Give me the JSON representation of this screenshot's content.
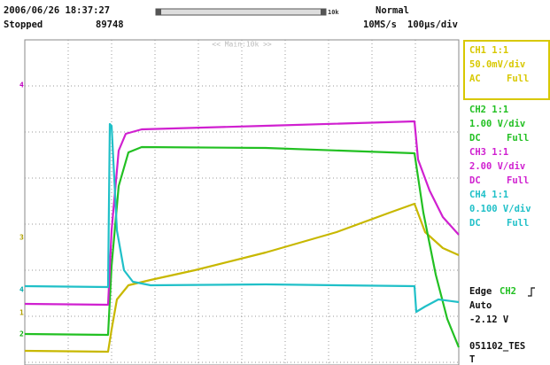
{
  "header": {
    "datetime": "2006/06/26 18:37:27",
    "status": "Stopped",
    "count": "89748",
    "zoom": "10k",
    "mode": "Normal",
    "sample_rate": "10MS/s",
    "timebase": "100μs/div"
  },
  "screen": {
    "zoom_label": "<< Main:10k >>",
    "markers": [
      "4",
      "3",
      "4",
      "1",
      "2"
    ]
  },
  "channels": [
    {
      "name": "CH1 1:1",
      "scale": "50.0mV/div",
      "coupling": "AC",
      "bandwidth": "Full"
    },
    {
      "name": "CH2 1:1",
      "scale": "1.00 V/div",
      "coupling": "DC",
      "bandwidth": "Full"
    },
    {
      "name": "CH3 1:1",
      "scale": "2.00 V/div",
      "coupling": "DC",
      "bandwidth": "Full"
    },
    {
      "name": "CH4 1:1",
      "scale": "0.100 V/div",
      "coupling": "DC",
      "bandwidth": "Full"
    }
  ],
  "trigger": {
    "type": "Edge",
    "source": "CH2",
    "mode": "Auto",
    "level": "-2.12 V"
  },
  "file": [
    "051102_TES",
    "T"
  ]
}
